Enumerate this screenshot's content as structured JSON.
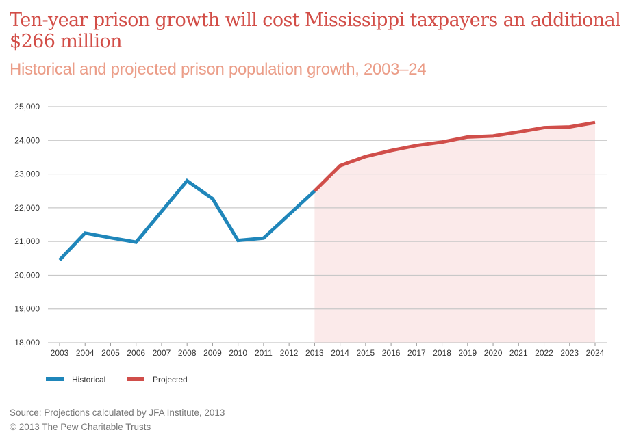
{
  "title": "Ten-year prison growth will cost Mississippi taxpayers an additional $266 million",
  "subtitle": "Historical and projected prison population growth, 2003–24",
  "source": "Source: Projections calculated by JFA Institute, 2013",
  "copyright": "© 2013 The Pew Charitable Trusts",
  "chart_data": {
    "type": "line",
    "x": [
      2003,
      2004,
      2005,
      2006,
      2007,
      2008,
      2009,
      2010,
      2011,
      2012,
      2013,
      2014,
      2015,
      2016,
      2017,
      2018,
      2019,
      2020,
      2021,
      2022,
      2023,
      2024
    ],
    "ylim": [
      18000,
      25000
    ],
    "yticks": [
      "18,000",
      "19,000",
      "20,000",
      "21,000",
      "22,000",
      "23,000",
      "24,000",
      "25,000"
    ],
    "grid": true,
    "legend_placement": "bottom-left",
    "series": [
      {
        "name": "Historical",
        "color": "#1f86ba",
        "x": [
          2003,
          2004,
          2005,
          2006,
          2007,
          2008,
          2009,
          2010,
          2011,
          2012,
          2013
        ],
        "values": [
          20450,
          21250,
          21110,
          20980,
          21890,
          22800,
          22270,
          21030,
          21100,
          21800,
          22500
        ]
      },
      {
        "name": "Projected",
        "color": "#d04e4a",
        "fill": "#fbeaea",
        "x": [
          2013,
          2014,
          2015,
          2016,
          2017,
          2018,
          2019,
          2020,
          2021,
          2022,
          2023,
          2024
        ],
        "values": [
          22500,
          23250,
          23520,
          23700,
          23850,
          23950,
          24100,
          24130,
          24250,
          24380,
          24400,
          24530
        ]
      }
    ]
  }
}
